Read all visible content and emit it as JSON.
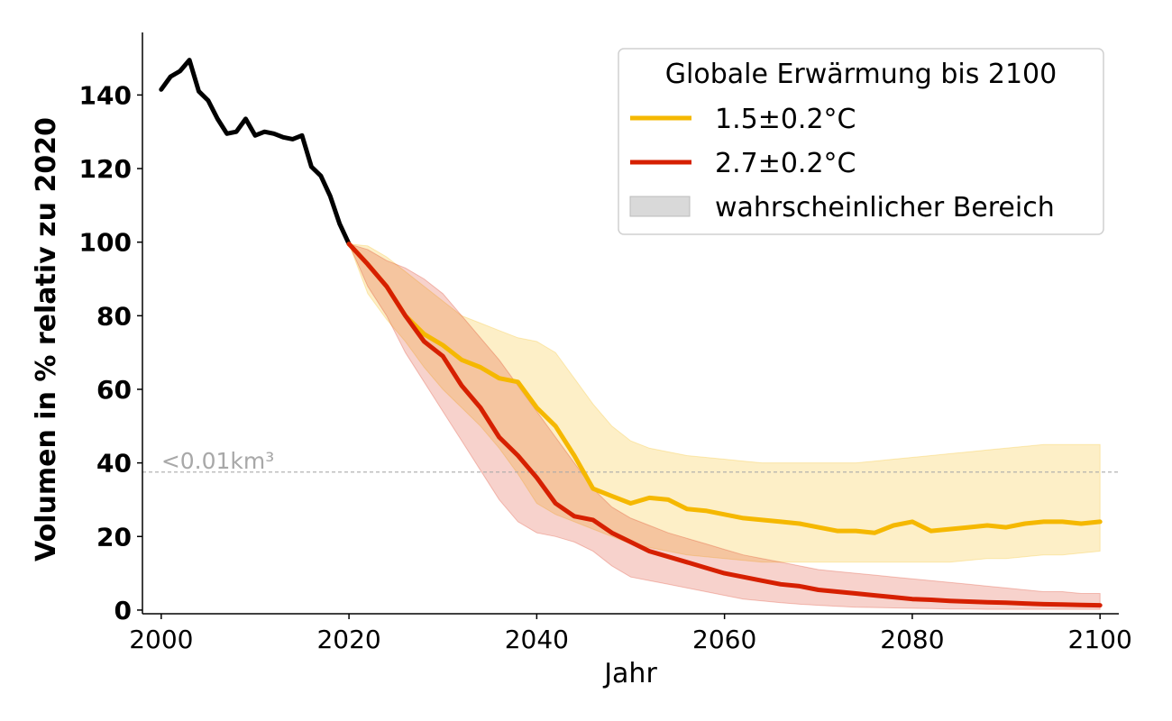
{
  "chart_data": {
    "type": "line",
    "xlabel": "Jahr",
    "ylabel": "Volumen in % relativ zu 2020",
    "xlim": [
      1998,
      2102
    ],
    "ylim": [
      -1,
      157
    ],
    "xticks": [
      2000,
      2020,
      2040,
      2060,
      2080,
      2100
    ],
    "yticks": [
      0,
      20,
      40,
      60,
      80,
      100,
      120,
      140
    ],
    "grid": false,
    "legend": {
      "title": "Globale Erwärmung bis 2100",
      "position": "top-right",
      "entries": [
        "1.5±0.2°C",
        "2.7±0.2°C",
        "wahrscheinlicher Bereich"
      ]
    },
    "annotation": {
      "text": "<0.01km³",
      "y": 37.5,
      "color": "#aaaaaa"
    },
    "colors": {
      "historical": "#000000",
      "low": "#f5b800",
      "high": "#d62000",
      "range_patch": "#d9d9d9"
    },
    "historical": {
      "x": [
        2000,
        2001,
        2002,
        2003,
        2004,
        2005,
        2006,
        2007,
        2008,
        2009,
        2010,
        2011,
        2012,
        2013,
        2014,
        2015,
        2016,
        2017,
        2018,
        2019,
        2020
      ],
      "y": [
        141.5,
        145,
        146.5,
        149.5,
        141,
        138.5,
        133.5,
        129.5,
        130,
        133.5,
        129,
        130,
        129.5,
        128.5,
        128,
        129,
        120.5,
        118,
        112.5,
        105,
        99.5
      ]
    },
    "series": [
      {
        "name": "1.5±0.2°C",
        "x": [
          2020,
          2022,
          2024,
          2026,
          2028,
          2030,
          2032,
          2034,
          2036,
          2038,
          2040,
          2042,
          2044,
          2046,
          2048,
          2050,
          2052,
          2054,
          2056,
          2058,
          2060,
          2062,
          2064,
          2066,
          2068,
          2070,
          2072,
          2074,
          2076,
          2078,
          2080,
          2082,
          2084,
          2086,
          2088,
          2090,
          2092,
          2094,
          2096,
          2098,
          2100
        ],
        "y": [
          99.5,
          94,
          88,
          80,
          75,
          72,
          68,
          66,
          63,
          62,
          55,
          50,
          42,
          33,
          31,
          29,
          30.5,
          30,
          27.5,
          27,
          26,
          25,
          24.5,
          24,
          23.5,
          22.5,
          21.5,
          21.5,
          21,
          23,
          24,
          21.5,
          22,
          22.5,
          23,
          22.5,
          23.5,
          24,
          24,
          23.5,
          24
        ],
        "upper": [
          99.5,
          99,
          96,
          92,
          88,
          84,
          80,
          78,
          76,
          74,
          73,
          70,
          63,
          56,
          50,
          46,
          44,
          43,
          42,
          41.5,
          41,
          40.5,
          40,
          40,
          40,
          40,
          40,
          40,
          40.5,
          41,
          41.5,
          42,
          42.5,
          43,
          43.5,
          44,
          44.5,
          45,
          45,
          45,
          45
        ],
        "lower": [
          99.5,
          86,
          79,
          73,
          66,
          60,
          55,
          50,
          44,
          37,
          29,
          26,
          24,
          22,
          20,
          18,
          17,
          16,
          15,
          14.5,
          14,
          13.5,
          13,
          13,
          13,
          13,
          13,
          13,
          13,
          13,
          13,
          13,
          13,
          13.5,
          14,
          14,
          14.5,
          15,
          15,
          15.5,
          16
        ]
      },
      {
        "name": "2.7±0.2°C",
        "x": [
          2020,
          2022,
          2024,
          2026,
          2028,
          2030,
          2032,
          2034,
          2036,
          2038,
          2040,
          2042,
          2044,
          2046,
          2048,
          2050,
          2052,
          2054,
          2056,
          2058,
          2060,
          2062,
          2064,
          2066,
          2068,
          2070,
          2072,
          2074,
          2076,
          2078,
          2080,
          2082,
          2084,
          2086,
          2088,
          2090,
          2092,
          2094,
          2096,
          2098,
          2100
        ],
        "y": [
          99.5,
          94,
          88,
          80,
          73,
          69,
          61,
          55,
          47,
          42,
          36,
          29,
          25.5,
          24.5,
          21,
          18.5,
          16,
          14.5,
          13,
          11.5,
          10,
          9,
          8,
          7,
          6.5,
          5.5,
          5,
          4.5,
          4,
          3.5,
          3,
          2.8,
          2.5,
          2.3,
          2.1,
          2,
          1.8,
          1.6,
          1.5,
          1.4,
          1.3
        ],
        "upper": [
          99.5,
          98,
          95,
          93,
          90,
          86,
          80,
          74,
          68,
          61,
          54,
          47,
          40,
          33,
          28,
          25,
          23,
          21,
          19.5,
          18,
          16.5,
          15,
          14,
          13,
          12,
          11,
          10.5,
          10,
          9.5,
          9,
          8.5,
          8,
          7.5,
          7,
          6.5,
          6,
          5.5,
          5,
          5,
          4.5,
          4.5
        ],
        "lower": [
          99.5,
          88,
          80,
          70,
          62,
          54,
          46,
          38,
          30,
          24,
          21,
          20,
          18.5,
          16,
          12,
          9,
          8,
          7,
          6,
          5,
          4,
          3,
          2.5,
          2,
          1.6,
          1.3,
          1,
          0.8,
          0.7,
          0.6,
          0.5,
          0.4,
          0.3,
          0.3,
          0.2,
          0.2,
          0.2,
          0.2,
          0.2,
          0.2,
          0.2
        ]
      }
    ]
  }
}
